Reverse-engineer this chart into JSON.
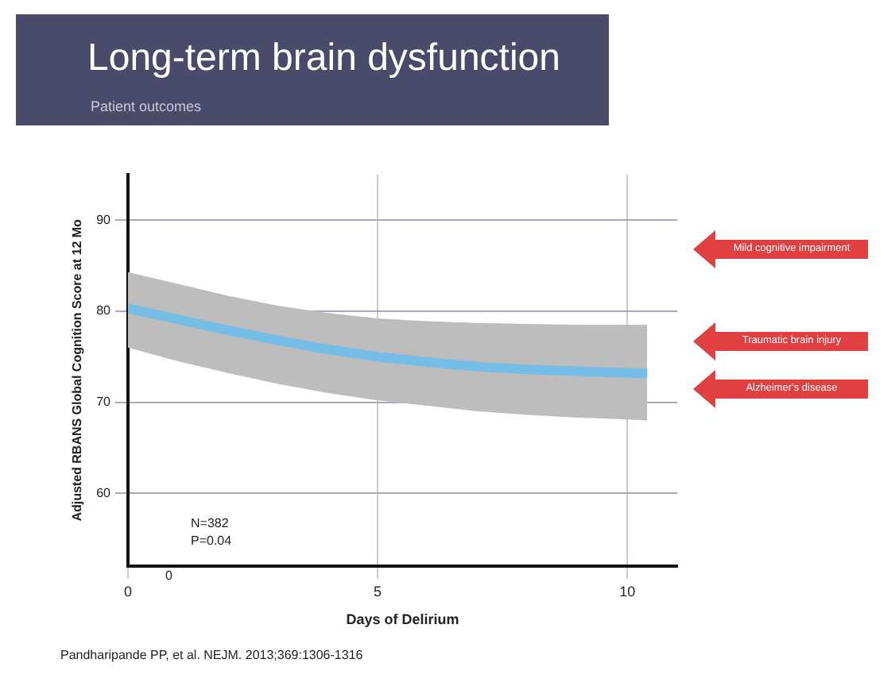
{
  "chart_data": {
    "type": "line",
    "title": "Long-term brain dysfunction",
    "subtitle": "Patient outcomes",
    "xlabel": "Days of Delirium",
    "ylabel": "Adjusted RBANS Global Cognition Score at 12 Mo",
    "x": [
      0,
      1,
      2,
      3,
      4,
      5,
      6,
      7,
      8,
      9,
      10,
      10.4
    ],
    "series": [
      {
        "color": "#74bde6",
        "values": [
          80.3,
          79.1,
          77.9,
          76.8,
          75.8,
          75,
          74.4,
          73.9,
          73.6,
          73.4,
          73.2,
          73.2
        ],
        "lower": [
          76,
          74.5,
          73.2,
          72,
          71,
          70.2,
          69.6,
          69,
          68.6,
          68.3,
          68.1,
          68
        ],
        "upper": [
          84.3,
          83,
          81.7,
          80.6,
          79.8,
          79.2,
          78.9,
          78.7,
          78.6,
          78.5,
          78.5,
          78.5
        ]
      }
    ],
    "xlim": [
      0,
      11
    ],
    "xticks": [
      0,
      5,
      10
    ],
    "ylim": [
      52,
      95
    ],
    "yticks": [
      60,
      70,
      80,
      90
    ],
    "grid": true,
    "legend": false,
    "marker": "none",
    "line_style": "solid",
    "annotations": [
      "Mild cognitive impairment",
      "Traumatic brain injury",
      "Alzheimer's disease",
      "0",
      "N=382",
      "P=0.04",
      "Pandharipande PP, et al. NEJM. 2013;369:1306-1316"
    ]
  }
}
